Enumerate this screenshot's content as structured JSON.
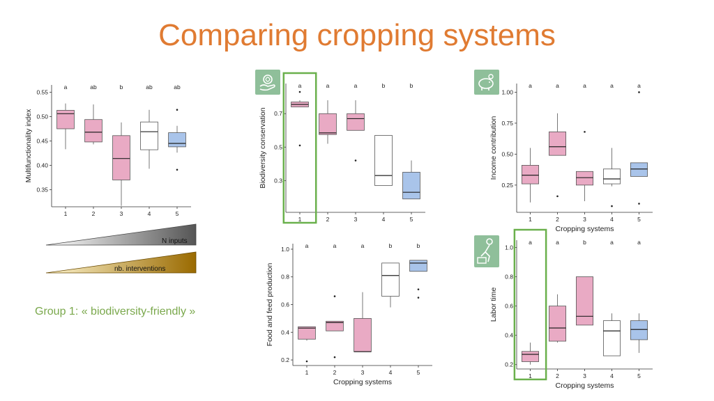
{
  "title": "Comparing cropping systems",
  "group_label": "Group 1: « biodiversity-friendly »",
  "gradients": {
    "n_inputs": "N inputs",
    "interventions": "nb. interventions"
  },
  "colors": {
    "title": "#e07b32",
    "pink": "#e9aac4",
    "white": "#ffffff",
    "blue": "#a9c4ea",
    "highlight": "#6ab04c",
    "icon_badge": "#8fbf9a"
  },
  "icons": {
    "biodiversity": "leaf-hand-icon",
    "income": "piggy-bank-icon",
    "labor": "worker-icon"
  },
  "chart_data": [
    {
      "id": "multifunctionality",
      "type": "boxplot",
      "ylabel": "Multifunctionality index",
      "xlabel": "",
      "categories": [
        "1",
        "2",
        "3",
        "4",
        "5"
      ],
      "ylim": [
        0.315,
        0.565
      ],
      "yticks": [
        0.35,
        0.4,
        0.45,
        0.5,
        0.55
      ],
      "ytick_labels": [
        "0.35",
        "0.40",
        "0.45",
        "0.50",
        "0.55"
      ],
      "letters": [
        "a",
        "ab",
        "b",
        "ab",
        "ab"
      ],
      "fills": [
        "#e9aac4",
        "#e9aac4",
        "#e9aac4",
        "#ffffff",
        "#a9c4ea"
      ],
      "boxes": [
        {
          "min": 0.433,
          "q1": 0.475,
          "median": 0.506,
          "q3": 0.513,
          "max": 0.527,
          "outliers": []
        },
        {
          "min": 0.443,
          "q1": 0.448,
          "median": 0.468,
          "q3": 0.494,
          "max": 0.525,
          "outliers": []
        },
        {
          "min": 0.317,
          "q1": 0.37,
          "median": 0.414,
          "q3": 0.461,
          "max": 0.488,
          "outliers": []
        },
        {
          "min": 0.393,
          "q1": 0.432,
          "median": 0.469,
          "q3": 0.489,
          "max": 0.514,
          "outliers": []
        },
        {
          "min": 0.426,
          "q1": 0.438,
          "median": 0.445,
          "q3": 0.467,
          "max": 0.481,
          "outliers": [
            0.514,
            0.391
          ]
        }
      ],
      "highlight": null
    },
    {
      "id": "biodiversity",
      "type": "boxplot",
      "ylabel": "Biodiversity conservation",
      "xlabel": "",
      "categories": [
        "1",
        "2",
        "3",
        "4",
        "5"
      ],
      "ylim": [
        0.11,
        0.88
      ],
      "yticks": [
        0.3,
        0.5,
        0.7
      ],
      "ytick_labels": [
        "0.3",
        "0.5",
        "0.7"
      ],
      "letters": [
        "a",
        "a",
        "a",
        "b",
        "b"
      ],
      "fills": [
        "#e9aac4",
        "#e9aac4",
        "#e9aac4",
        "#ffffff",
        "#a9c4ea"
      ],
      "boxes": [
        {
          "min": 0.74,
          "q1": 0.74,
          "median": 0.755,
          "q3": 0.77,
          "max": 0.78,
          "outliers": [
            0.83,
            0.51
          ]
        },
        {
          "min": 0.52,
          "q1": 0.575,
          "median": 0.585,
          "q3": 0.7,
          "max": 0.78,
          "outliers": []
        },
        {
          "min": 0.6,
          "q1": 0.6,
          "median": 0.67,
          "q3": 0.7,
          "max": 0.78,
          "outliers": [
            0.42
          ]
        },
        {
          "min": 0.27,
          "q1": 0.27,
          "median": 0.33,
          "q3": 0.57,
          "max": 0.57,
          "outliers": []
        },
        {
          "min": 0.19,
          "q1": 0.19,
          "median": 0.23,
          "q3": 0.35,
          "max": 0.42,
          "outliers": []
        }
      ],
      "highlight": 0
    },
    {
      "id": "income",
      "type": "boxplot",
      "ylabel": "Income contribution",
      "xlabel": "Cropping systems",
      "categories": [
        "1",
        "2",
        "3",
        "4",
        "5"
      ],
      "ylim": [
        0.03,
        1.07
      ],
      "yticks": [
        0.25,
        0.5,
        0.75,
        1.0
      ],
      "ytick_labels": [
        "0.25",
        "0.50",
        "0.75",
        "1.00"
      ],
      "letters": [
        "a",
        "a",
        "a",
        "a",
        "a"
      ],
      "fills": [
        "#e9aac4",
        "#e9aac4",
        "#e9aac4",
        "#ffffff",
        "#a9c4ea"
      ],
      "boxes": [
        {
          "min": 0.11,
          "q1": 0.26,
          "median": 0.33,
          "q3": 0.41,
          "max": 0.55,
          "outliers": []
        },
        {
          "min": 0.49,
          "q1": 0.49,
          "median": 0.56,
          "q3": 0.68,
          "max": 0.83,
          "outliers": [
            0.16
          ]
        },
        {
          "min": 0.12,
          "q1": 0.25,
          "median": 0.31,
          "q3": 0.36,
          "max": 0.36,
          "outliers": [
            0.68
          ]
        },
        {
          "min": 0.24,
          "q1": 0.26,
          "median": 0.3,
          "q3": 0.38,
          "max": 0.55,
          "outliers": [
            0.08
          ]
        },
        {
          "min": 0.32,
          "q1": 0.32,
          "median": 0.38,
          "q3": 0.43,
          "max": 0.43,
          "outliers": [
            1.0,
            0.1
          ]
        }
      ],
      "highlight": null
    },
    {
      "id": "food",
      "type": "boxplot",
      "ylabel": "Food and feed production",
      "xlabel": "Cropping systems",
      "categories": [
        "1",
        "2",
        "3",
        "4",
        "5"
      ],
      "ylim": [
        0.16,
        1.04
      ],
      "yticks": [
        0.2,
        0.4,
        0.6,
        0.8,
        1.0
      ],
      "ytick_labels": [
        "0.2",
        "0.4",
        "0.6",
        "0.8",
        "1.0"
      ],
      "letters": [
        "a",
        "a",
        "a",
        "b",
        "b"
      ],
      "fills": [
        "#e9aac4",
        "#e9aac4",
        "#e9aac4",
        "#ffffff",
        "#a9c4ea"
      ],
      "boxes": [
        {
          "min": 0.34,
          "q1": 0.35,
          "median": 0.43,
          "q3": 0.44,
          "max": 0.44,
          "outliers": [
            0.19
          ]
        },
        {
          "min": 0.41,
          "q1": 0.41,
          "median": 0.47,
          "q3": 0.48,
          "max": 0.48,
          "outliers": [
            0.66,
            0.22
          ]
        },
        {
          "min": 0.26,
          "q1": 0.26,
          "median": 0.26,
          "q3": 0.5,
          "max": 0.69,
          "outliers": []
        },
        {
          "min": 0.58,
          "q1": 0.66,
          "median": 0.81,
          "q3": 0.9,
          "max": 0.9,
          "outliers": []
        },
        {
          "min": 0.84,
          "q1": 0.84,
          "median": 0.9,
          "q3": 0.92,
          "max": 0.92,
          "outliers": [
            0.71,
            0.65
          ]
        }
      ],
      "highlight": null
    },
    {
      "id": "labor",
      "type": "boxplot",
      "ylabel": "Labor time",
      "xlabel": "Cropping systems",
      "categories": [
        "1",
        "2",
        "3",
        "4",
        "5"
      ],
      "ylim": [
        0.17,
        1.05
      ],
      "yticks": [
        0.2,
        0.4,
        0.6,
        0.8,
        1.0
      ],
      "ytick_labels": [
        "0.2",
        "0.4",
        "0.6",
        "0.8",
        "1.0"
      ],
      "letters": [
        "a",
        "a",
        "b",
        "a",
        "a"
      ],
      "fills": [
        "#e9aac4",
        "#e9aac4",
        "#e9aac4",
        "#ffffff",
        "#a9c4ea"
      ],
      "boxes": [
        {
          "min": 0.2,
          "q1": 0.22,
          "median": 0.27,
          "q3": 0.29,
          "max": 0.35,
          "outliers": []
        },
        {
          "min": 0.35,
          "q1": 0.36,
          "median": 0.45,
          "q3": 0.6,
          "max": 0.68,
          "outliers": []
        },
        {
          "min": 0.47,
          "q1": 0.47,
          "median": 0.53,
          "q3": 0.8,
          "max": 0.8,
          "outliers": []
        },
        {
          "min": 0.26,
          "q1": 0.26,
          "median": 0.43,
          "q3": 0.5,
          "max": 0.55,
          "outliers": []
        },
        {
          "min": 0.28,
          "q1": 0.37,
          "median": 0.44,
          "q3": 0.5,
          "max": 0.55,
          "outliers": []
        }
      ],
      "highlight": 0
    }
  ]
}
